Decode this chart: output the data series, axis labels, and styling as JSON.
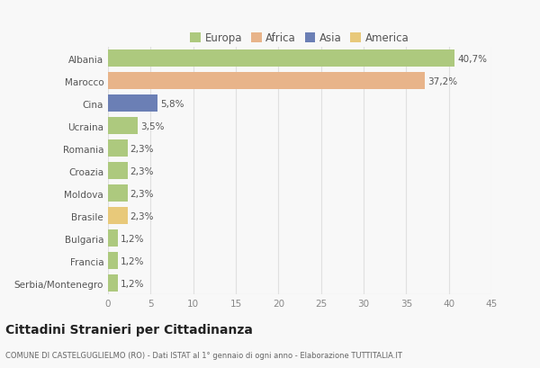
{
  "categories": [
    "Albania",
    "Marocco",
    "Cina",
    "Ucraina",
    "Romania",
    "Croazia",
    "Moldova",
    "Brasile",
    "Bulgaria",
    "Francia",
    "Serbia/Montenegro"
  ],
  "values": [
    40.7,
    37.2,
    5.8,
    3.5,
    2.3,
    2.3,
    2.3,
    2.3,
    1.2,
    1.2,
    1.2
  ],
  "labels": [
    "40,7%",
    "37,2%",
    "5,8%",
    "3,5%",
    "2,3%",
    "2,3%",
    "2,3%",
    "2,3%",
    "1,2%",
    "1,2%",
    "1,2%"
  ],
  "bar_colors": [
    "#adc97e",
    "#e8b48a",
    "#6b7fb5",
    "#adc97e",
    "#adc97e",
    "#adc97e",
    "#adc97e",
    "#e8c97a",
    "#adc97e",
    "#adc97e",
    "#adc97e"
  ],
  "legend_labels": [
    "Europa",
    "Africa",
    "Asia",
    "America"
  ],
  "legend_colors": [
    "#adc97e",
    "#e8b48a",
    "#6b7fb5",
    "#e8c97a"
  ],
  "title": "Cittadini Stranieri per Cittadinanza",
  "subtitle": "COMUNE DI CASTELGUGLIELMO (RO) - Dati ISTAT al 1° gennaio di ogni anno - Elaborazione TUTTITALIA.IT",
  "xlim": [
    0,
    45
  ],
  "xticks": [
    0,
    5,
    10,
    15,
    20,
    25,
    30,
    35,
    40,
    45
  ],
  "background_color": "#f8f8f8",
  "grid_color": "#e0e0e0",
  "bar_height": 0.75,
  "label_fontsize": 7.5,
  "ytick_fontsize": 7.5,
  "xtick_fontsize": 7.5
}
